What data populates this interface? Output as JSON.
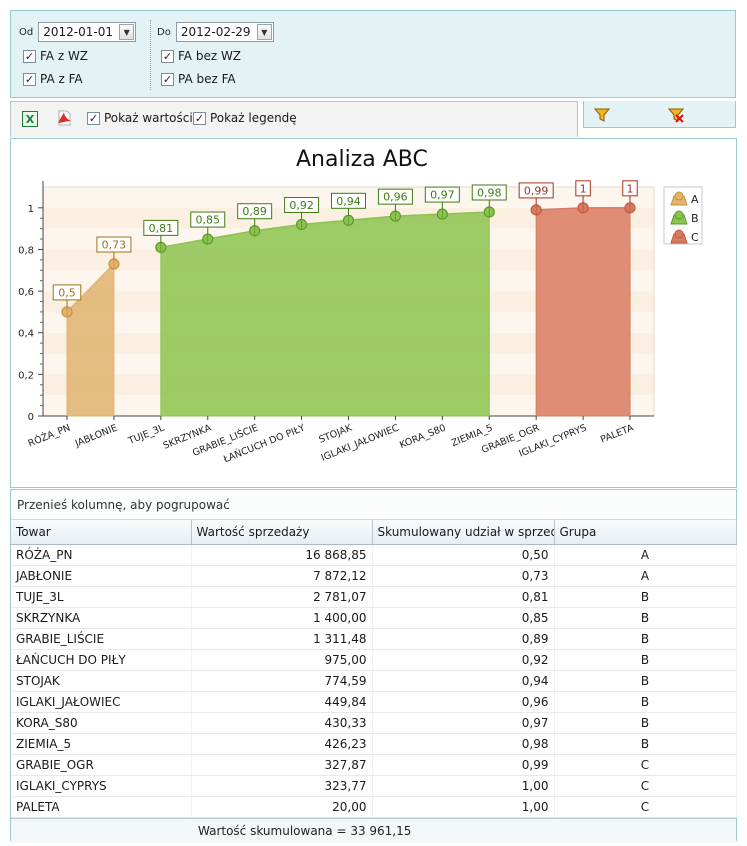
{
  "filters": {
    "od_label": "Od",
    "od_value": "2012-01-01",
    "do_label": "Do",
    "do_value": "2012-02-29",
    "checkboxes": [
      {
        "label": "FA z WZ",
        "checked": true
      },
      {
        "label": "PA z FA",
        "checked": true
      },
      {
        "label": "FA bez WZ",
        "checked": true
      },
      {
        "label": "PA bez FA",
        "checked": true
      }
    ]
  },
  "toolbar": {
    "excel_icon": "excel-icon",
    "pdf_icon": "pdf-icon",
    "show_values_label": "Pokaż wartości",
    "show_values_checked": true,
    "show_legend_label": "Pokaż legendę",
    "show_legend_checked": true,
    "filter_icon": "funnel-icon",
    "clear_filter_icon": "funnel-clear-icon"
  },
  "chart_data": {
    "type": "area",
    "title": "Analiza ABC",
    "categories": [
      "RÓŻA_PN",
      "JABŁONIE",
      "TUJE_3L",
      "SKRZYNKA",
      "GRABIE_LIŚCIE",
      "ŁAŃCUCH DO PIŁY",
      "STOJAK",
      "IGLAKI_JAŁOWIEC",
      "KORA_S80",
      "ZIEMIA_5",
      "GRABIE_OGR",
      "IGLAKI_CYPRYS",
      "PALETA"
    ],
    "series": [
      {
        "name": "A",
        "color": "#e0b36e",
        "values": [
          0.5,
          0.73,
          null,
          null,
          null,
          null,
          null,
          null,
          null,
          null,
          null,
          null,
          null
        ]
      },
      {
        "name": "B",
        "color": "#8cc34e",
        "values": [
          null,
          null,
          0.81,
          0.85,
          0.89,
          0.92,
          0.94,
          0.96,
          0.97,
          0.98,
          null,
          null,
          null
        ]
      },
      {
        "name": "C",
        "color": "#d97b60",
        "values": [
          null,
          null,
          null,
          null,
          null,
          null,
          null,
          null,
          null,
          null,
          0.99,
          1,
          1
        ]
      }
    ],
    "value_labels": [
      "0,5",
      "0,73",
      "0,81",
      "0,85",
      "0,89",
      "0,92",
      "0,94",
      "0,96",
      "0,97",
      "0,98",
      "0,99",
      "1",
      "1"
    ],
    "yticks": [
      "0",
      "0,2",
      "0,4",
      "0,6",
      "0,8",
      "1"
    ],
    "ylim": [
      0,
      1.1
    ],
    "legend": "right"
  },
  "grid": {
    "group_hint": "Przenieś kolumnę, aby pogrupować",
    "columns": [
      "Towar",
      "Wartość sprzedaży",
      "Skumulowany udział w sprzedaży",
      "Grupa"
    ],
    "rows": [
      [
        "RÓŻA_PN",
        "16 868,85",
        "0,50",
        "A"
      ],
      [
        "JABŁONIE",
        "7 872,12",
        "0,73",
        "A"
      ],
      [
        "TUJE_3L",
        "2 781,07",
        "0,81",
        "B"
      ],
      [
        "SKRZYNKA",
        "1 400,00",
        "0,85",
        "B"
      ],
      [
        "GRABIE_LIŚCIE",
        "1 311,48",
        "0,89",
        "B"
      ],
      [
        "ŁAŃCUCH DO PIŁY",
        "975,00",
        "0,92",
        "B"
      ],
      [
        "STOJAK",
        "774,59",
        "0,94",
        "B"
      ],
      [
        "IGLAKI_JAŁOWIEC",
        "449,84",
        "0,96",
        "B"
      ],
      [
        "KORA_S80",
        "430,33",
        "0,97",
        "B"
      ],
      [
        "ZIEMIA_5",
        "426,23",
        "0,98",
        "B"
      ],
      [
        "GRABIE_OGR",
        "327,87",
        "0,99",
        "C"
      ],
      [
        "IGLAKI_CYPRYS",
        "323,77",
        "1,00",
        "C"
      ],
      [
        "PALETA",
        "20,00",
        "1,00",
        "C"
      ]
    ],
    "footer": "Wartość skumulowana = 33 961,15"
  }
}
